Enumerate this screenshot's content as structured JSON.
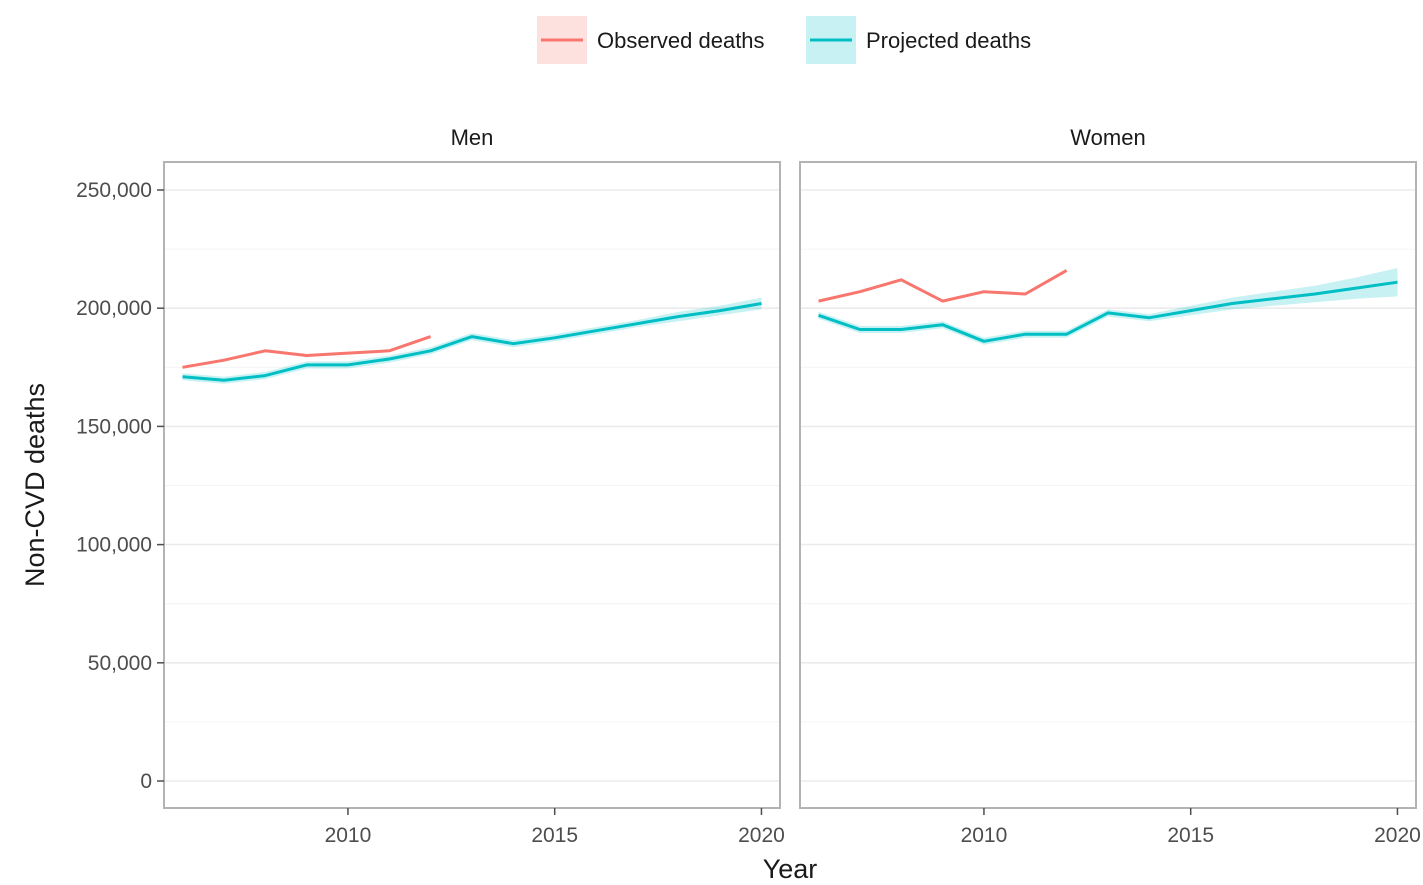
{
  "chart_data": {
    "type": "line",
    "xlabel": "Year",
    "ylabel": "Non-CVD deaths",
    "ylim": [
      0,
      250000
    ],
    "y_ticks": [
      0,
      50000,
      100000,
      150000,
      200000,
      250000
    ],
    "y_tick_labels": [
      "0",
      "50,000",
      "100,000",
      "150,000",
      "200,000",
      "250,000"
    ],
    "x_ticks": [
      2010,
      2015,
      2020
    ],
    "x_tick_labels": [
      "2010",
      "2015",
      "2020"
    ],
    "xlim": [
      2005.6,
      2020.4
    ],
    "grid": true,
    "legend": {
      "placement": "top",
      "entries": [
        {
          "label": "Observed deaths",
          "color": "#F8766D"
        },
        {
          "label": "Projected deaths",
          "color": "#00BFC4"
        }
      ]
    },
    "colors": {
      "observed": "#F8766D",
      "projected": "#00BFC4"
    },
    "panels": [
      {
        "title": "Men",
        "series": [
          {
            "name": "Observed deaths",
            "x": [
              2006,
              2007,
              2008,
              2009,
              2010,
              2011,
              2012
            ],
            "y": [
              175000,
              178000,
              182000,
              180000,
              181000,
              182000,
              188000
            ]
          },
          {
            "name": "Projected deaths",
            "x": [
              2006,
              2007,
              2008,
              2009,
              2010,
              2011,
              2012,
              2013,
              2014,
              2015,
              2016,
              2017,
              2018,
              2019,
              2020
            ],
            "y": [
              171000,
              169500,
              171500,
              176000,
              176000,
              178500,
              182000,
              188000,
              185000,
              187500,
              190500,
              193500,
              196500,
              199000,
              202000
            ],
            "lower": [
              169500,
              168000,
              170000,
              174500,
              174500,
              177000,
              180500,
              186500,
              183500,
              186000,
              189000,
              192000,
              194500,
              197000,
              199500
            ],
            "upper": [
              172500,
              171000,
              173000,
              177500,
              177500,
              180000,
              183500,
              189500,
              186500,
              189000,
              192000,
              195000,
              198500,
              201000,
              204500
            ]
          }
        ]
      },
      {
        "title": "Women",
        "series": [
          {
            "name": "Observed deaths",
            "x": [
              2006,
              2007,
              2008,
              2009,
              2010,
              2011,
              2012
            ],
            "y": [
              203000,
              207000,
              212000,
              203000,
              207000,
              206000,
              216000
            ]
          },
          {
            "name": "Projected deaths",
            "x": [
              2006,
              2007,
              2008,
              2009,
              2010,
              2011,
              2012,
              2013,
              2014,
              2015,
              2016,
              2017,
              2018,
              2019,
              2020
            ],
            "y": [
              197000,
              191000,
              191000,
              193000,
              186000,
              189000,
              189000,
              198000,
              196000,
              199000,
              202000,
              204000,
              206000,
              208500,
              211000
            ],
            "lower": [
              195500,
              189500,
              189500,
              191500,
              184500,
              187500,
              187500,
              196500,
              194500,
              197000,
              199500,
              201000,
              202500,
              204000,
              205000
            ],
            "upper": [
              198500,
              192500,
              192500,
              194500,
              187500,
              190500,
              190500,
              199500,
              197500,
              201000,
              204500,
              207000,
              209500,
              213000,
              217000
            ]
          }
        ]
      }
    ]
  }
}
